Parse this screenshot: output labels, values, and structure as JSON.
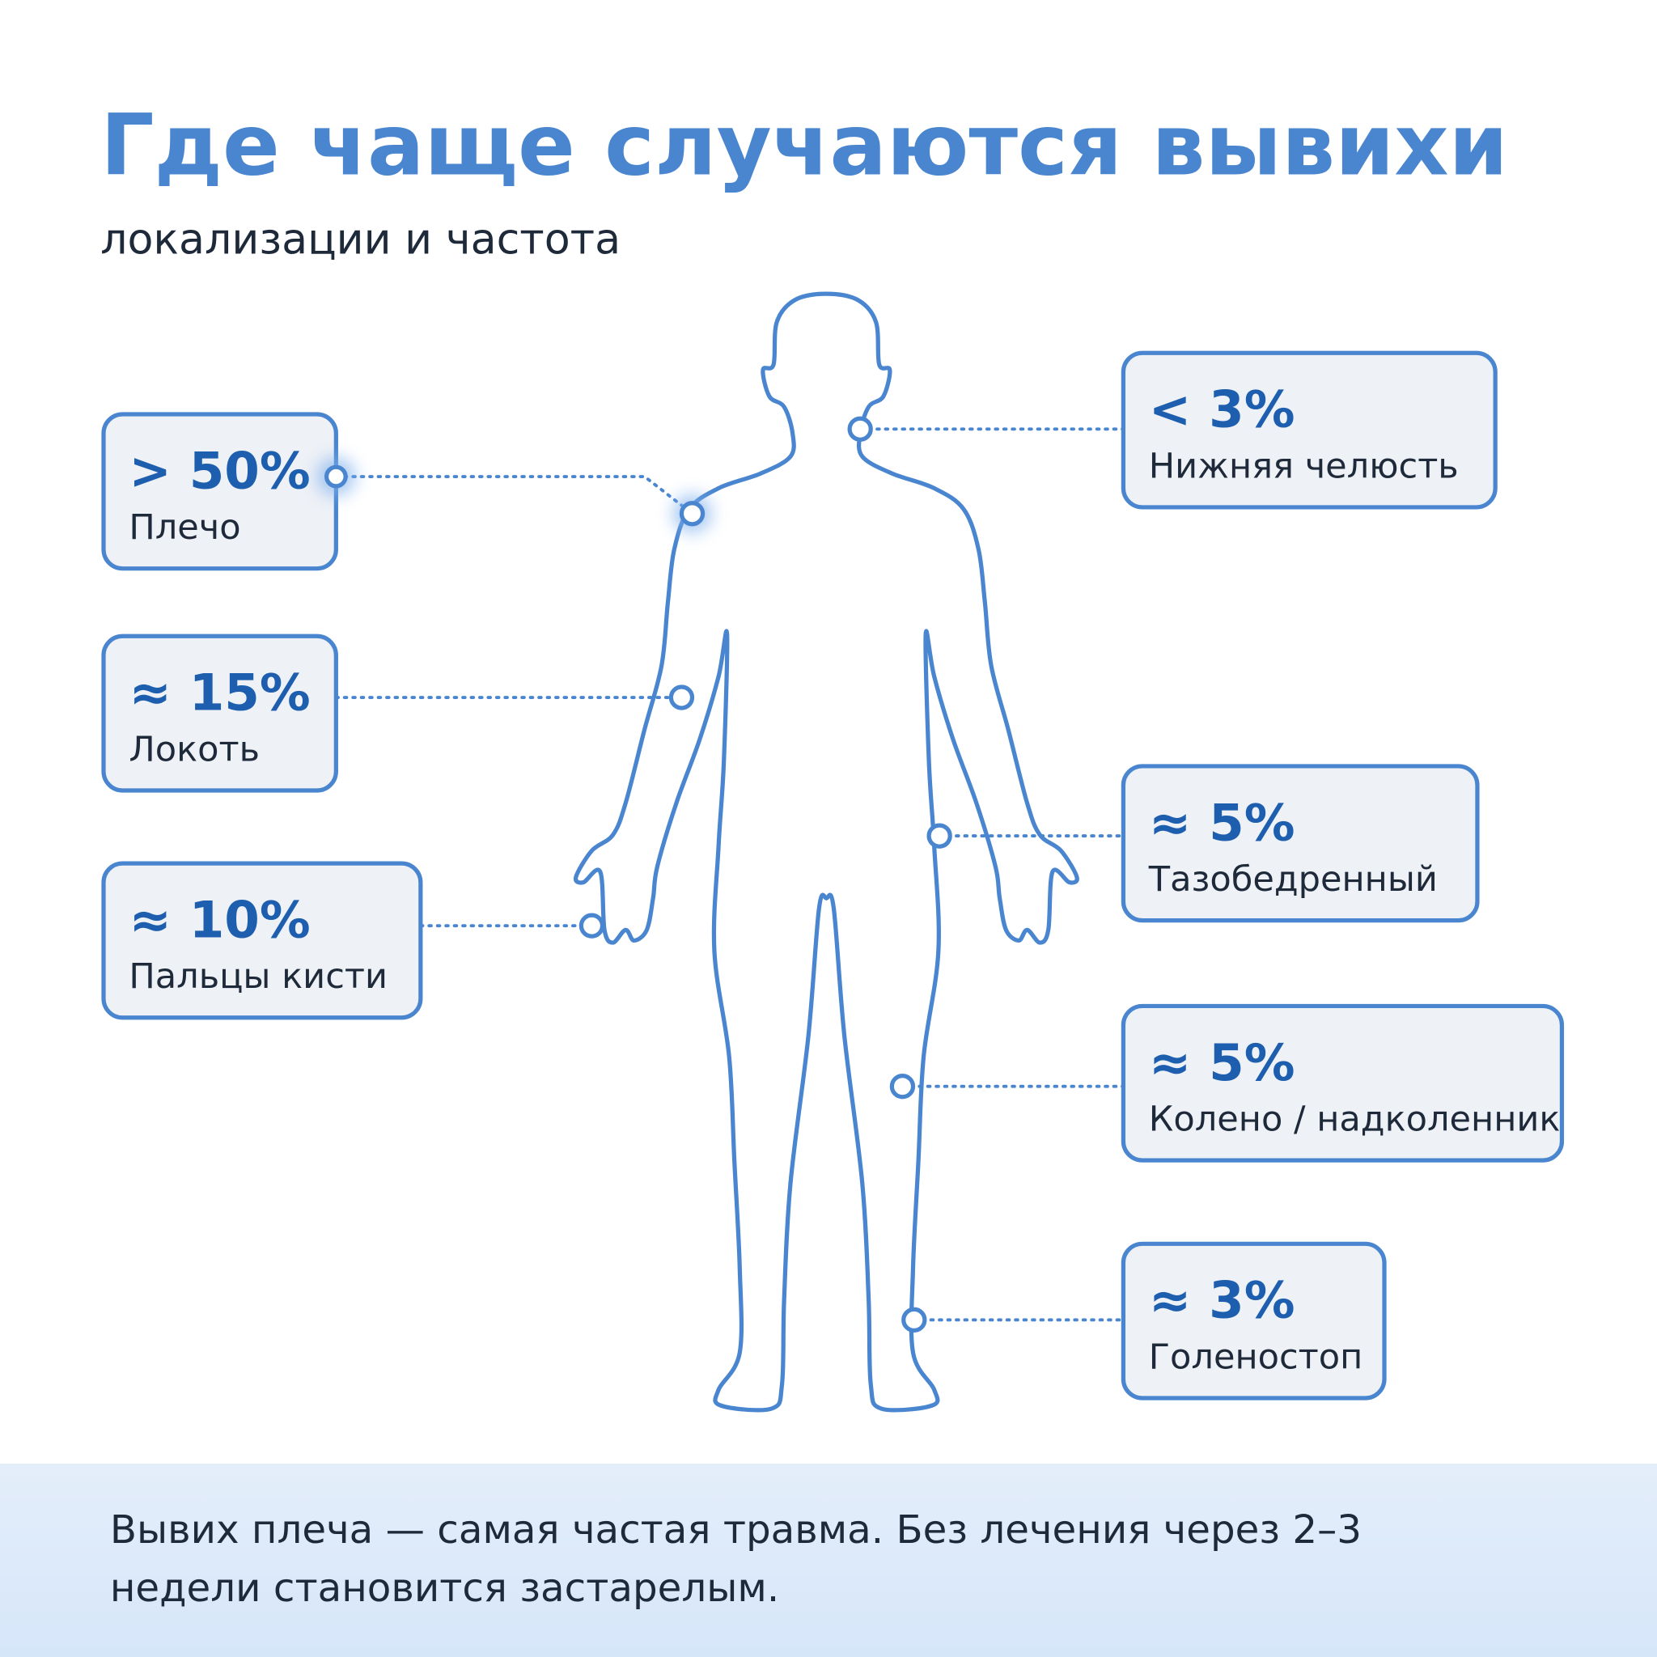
{
  "header": {
    "title": "Где чаще случаются вывихи",
    "subtitle": "локализации и частота"
  },
  "callouts": [
    {
      "value": "> 50%",
      "label": "Плечо"
    },
    {
      "value": "≈ 15%",
      "label": "Локоть"
    },
    {
      "value": "≈ 10%",
      "label": "Пальцы кисти"
    },
    {
      "value": "< 3%",
      "label": "Нижняя челюсть"
    },
    {
      "value": "≈ 5%",
      "label": "Тазобедренный"
    },
    {
      "value": "≈ 5%",
      "label": "Колено / надколенник"
    },
    {
      "value": "≈ 3%",
      "label": "Голеностоп"
    }
  ],
  "footer": {
    "lines": [
      "Вывих плеча — самая частая травма. Без лечения через 2–3",
      "недели становится застарелым."
    ]
  }
}
